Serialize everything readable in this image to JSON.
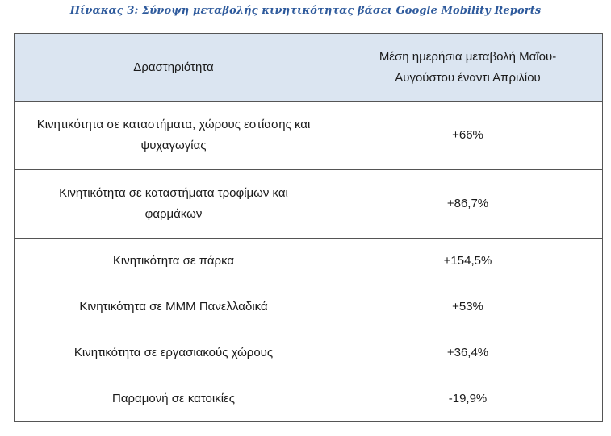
{
  "caption": "Πίνακας 3: Σύνοψη μεταβολής κινητικότητας βάσει Google Mobility Reports",
  "table": {
    "headers": [
      "Δραστηριότητα",
      "Μέση ημερήσια μεταβολή Μαΐου-Αυγούστου έναντι Απριλίου"
    ],
    "rows": [
      {
        "activity": "Κινητικότητα σε καταστήματα, χώρους εστίασης και ψυχαγωγίας",
        "change": "+66%"
      },
      {
        "activity": "Κινητικότητα σε καταστήματα τροφίμων και φαρμάκων",
        "change": "+86,7%"
      },
      {
        "activity": "Κινητικότητα σε πάρκα",
        "change": "+154,5%"
      },
      {
        "activity": "Κινητικότητα σε ΜΜΜ Πανελλαδικά",
        "change": "+53%"
      },
      {
        "activity": "Κινητικότητα σε εργασιακούς χώρους",
        "change": "+36,4%"
      },
      {
        "activity": "Παραμονή σε κατοικίες",
        "change": "-19,9%"
      }
    ]
  }
}
